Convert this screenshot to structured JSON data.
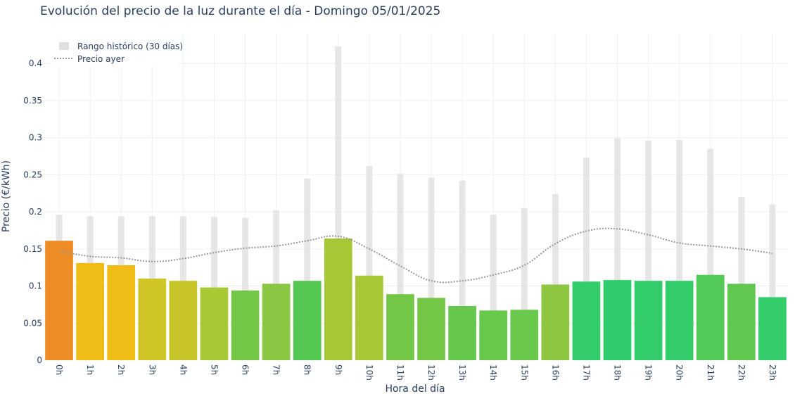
{
  "chart_data": {
    "type": "bar",
    "title": "Evolución del precio de la luz durante el día - Domingo 05/01/2025",
    "xlabel": "Hora del día",
    "ylabel": "Precio (€/kWh)",
    "categories": [
      "0h",
      "1h",
      "2h",
      "3h",
      "4h",
      "5h",
      "6h",
      "7h",
      "8h",
      "9h",
      "10h",
      "11h",
      "12h",
      "13h",
      "14h",
      "15h",
      "16h",
      "17h",
      "18h",
      "19h",
      "20h",
      "21h",
      "22h",
      "23h"
    ],
    "ylim": [
      0,
      0.44
    ],
    "yticks": [
      0,
      0.05,
      0.1,
      0.15,
      0.2,
      0.25,
      0.3,
      0.35,
      0.4
    ],
    "ytick_labels": [
      "0",
      "0.05",
      "0.1",
      "0.15",
      "0.2",
      "0.25",
      "0.3",
      "0.35",
      "0.4"
    ],
    "grid": true,
    "legend_position": "top-left",
    "series": [
      {
        "kind": "bar",
        "values": [
          0.161,
          0.131,
          0.128,
          0.11,
          0.107,
          0.098,
          0.094,
          0.103,
          0.107,
          0.164,
          0.114,
          0.089,
          0.084,
          0.073,
          0.067,
          0.068,
          0.102,
          0.106,
          0.108,
          0.107,
          0.107,
          0.115,
          0.103,
          0.085
        ],
        "colors": [
          "#ee8c25",
          "#f0bd16",
          "#f0bd16",
          "#cfc526",
          "#c8c52a",
          "#a8c834",
          "#74c646",
          "#8ac742",
          "#53c74f",
          "#a6c836",
          "#a5c834",
          "#74c646",
          "#74c646",
          "#65c74c",
          "#68c84c",
          "#6ac84c",
          "#8ec541",
          "#33cc6a",
          "#2ecc6a",
          "#33cc6a",
          "#33cc6a",
          "#53c957",
          "#61c84f",
          "#33cc6a"
        ]
      },
      {
        "kind": "range",
        "name": "Rango histórico (30 días)",
        "color": "#e0e0e0",
        "low": [
          0.069,
          0.061,
          0.055,
          0.051,
          0.049,
          0.059,
          0.069,
          0.071,
          0.09,
          0.075,
          0.053,
          0.046,
          0.045,
          0.047,
          0.042,
          0.028,
          0.062,
          0.09,
          0.094,
          0.096,
          0.097,
          0.099,
          0.093,
          0.079
        ],
        "high": [
          0.196,
          0.194,
          0.194,
          0.194,
          0.194,
          0.193,
          0.192,
          0.202,
          0.245,
          0.423,
          0.262,
          0.251,
          0.246,
          0.242,
          0.196,
          0.205,
          0.224,
          0.273,
          0.299,
          0.296,
          0.297,
          0.285,
          0.22,
          0.21
        ]
      },
      {
        "kind": "line",
        "name": "Precio ayer",
        "color": "#999999",
        "dash": "dotted",
        "values": [
          0.147,
          0.14,
          0.138,
          0.133,
          0.137,
          0.145,
          0.151,
          0.154,
          0.161,
          0.167,
          0.15,
          0.127,
          0.107,
          0.107,
          0.115,
          0.128,
          0.157,
          0.174,
          0.177,
          0.169,
          0.158,
          0.154,
          0.15,
          0.144
        ]
      }
    ]
  }
}
